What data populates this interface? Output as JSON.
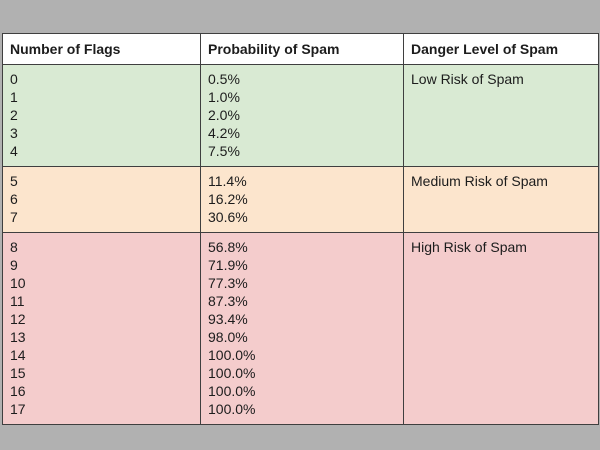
{
  "page": {
    "background_color": "#b1b1b1",
    "border_color": "#3f3f3f",
    "text_color": "#1c1c1c"
  },
  "table": {
    "headers": [
      "Number of Flags",
      "Probability of Spam",
      "Danger Level of Spam"
    ],
    "groups": [
      {
        "danger_label": "Low Risk of Spam",
        "color": "#d9ead3",
        "flags": [
          "0",
          "1",
          "2",
          "3",
          "4"
        ],
        "probabilities": [
          "0.5%",
          "1.0%",
          "2.0%",
          "4.2%",
          "7.5%"
        ]
      },
      {
        "danger_label": "Medium Risk of Spam",
        "color": "#fce5cd",
        "flags": [
          "5",
          "6",
          "7"
        ],
        "probabilities": [
          "11.4%",
          "16.2%",
          "30.6%"
        ]
      },
      {
        "danger_label": "High Risk of Spam",
        "color": "#f4cccc",
        "flags": [
          "8",
          "9",
          "10",
          "11",
          "12",
          "13",
          "14",
          "15",
          "16",
          "17"
        ],
        "probabilities": [
          "56.8%",
          "71.9%",
          "77.3%",
          "87.3%",
          "93.4%",
          "98.0%",
          "100.0%",
          "100.0%",
          "100.0%",
          "100.0%"
        ]
      }
    ]
  },
  "chart_data": {
    "type": "table",
    "title": "",
    "columns": [
      "Number of Flags",
      "Probability of Spam",
      "Danger Level of Spam"
    ],
    "rows": [
      [
        0,
        "0.5%",
        "Low Risk of Spam"
      ],
      [
        1,
        "1.0%",
        "Low Risk of Spam"
      ],
      [
        2,
        "2.0%",
        "Low Risk of Spam"
      ],
      [
        3,
        "4.2%",
        "Low Risk of Spam"
      ],
      [
        4,
        "7.5%",
        "Low Risk of Spam"
      ],
      [
        5,
        "11.4%",
        "Medium Risk of Spam"
      ],
      [
        6,
        "16.2%",
        "Medium Risk of Spam"
      ],
      [
        7,
        "30.6%",
        "Medium Risk of Spam"
      ],
      [
        8,
        "56.8%",
        "High Risk of Spam"
      ],
      [
        9,
        "71.9%",
        "High Risk of Spam"
      ],
      [
        10,
        "77.3%",
        "High Risk of Spam"
      ],
      [
        11,
        "87.3%",
        "High Risk of Spam"
      ],
      [
        12,
        "93.4%",
        "High Risk of Spam"
      ],
      [
        13,
        "98.0%",
        "High Risk of Spam"
      ],
      [
        14,
        "100.0%",
        "High Risk of Spam"
      ],
      [
        15,
        "100.0%",
        "High Risk of Spam"
      ],
      [
        16,
        "100.0%",
        "High Risk of Spam"
      ],
      [
        17,
        "100.0%",
        "High Risk of Spam"
      ]
    ],
    "row_group_colors": {
      "Low Risk of Spam": "#d9ead3",
      "Medium Risk of Spam": "#fce5cd",
      "High Risk of Spam": "#f4cccc"
    },
    "legend_position": "none",
    "grid": true
  }
}
